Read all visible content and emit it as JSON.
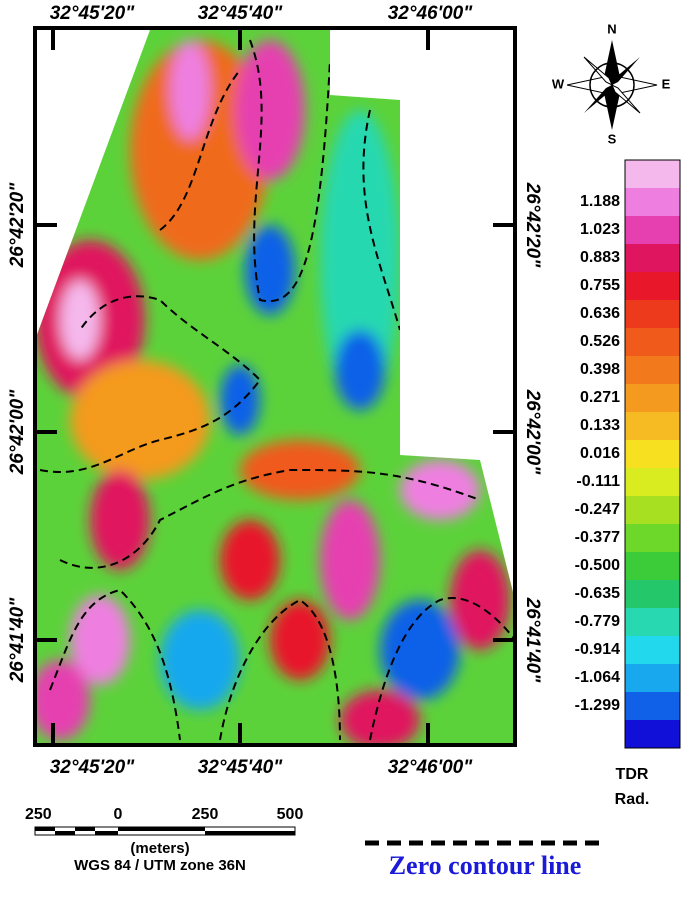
{
  "top_labels": [
    "32°45'20\"",
    "32°45'40\"",
    "32°46'00\""
  ],
  "bottom_labels": [
    "32°45'20\"",
    "32°45'40\"",
    "32°46'00\""
  ],
  "left_labels": [
    "26°42'20\"",
    "26°42'00\"",
    "26°41'40\""
  ],
  "right_labels": [
    "26°42'20\"",
    "26°42'00\"",
    "26°41'40\""
  ],
  "compass": {
    "n": "N",
    "s": "S",
    "e": "E",
    "w": "W"
  },
  "legend": {
    "title": "TDR",
    "unit": "Rad.",
    "labels": [
      "1.188",
      "1.023",
      "0.883",
      "0.755",
      "0.636",
      "0.526",
      "0.398",
      "0.271",
      "0.133",
      "0.016",
      "-0.111",
      "-0.247",
      "-0.377",
      "-0.500",
      "-0.635",
      "-0.779",
      "-0.914",
      "-1.064",
      "-1.299"
    ],
    "colors": [
      "#f5b8ec",
      "#ee7fe0",
      "#e63fb0",
      "#e0155f",
      "#e8182a",
      "#ee3a1c",
      "#f05a1a",
      "#f27a1c",
      "#f49a1e",
      "#f6bb22",
      "#f6e020",
      "#d8ec20",
      "#a6e020",
      "#6dd82a",
      "#3ccc3a",
      "#24c86a",
      "#28d8b0",
      "#22d8ec",
      "#18a8ee",
      "#1060e8",
      "#1010d8"
    ]
  },
  "scale_bar": {
    "labels": [
      "250",
      "0",
      "250",
      "500"
    ],
    "unit": "(meters)",
    "projection": "WGS 84 / UTM zone 36N"
  },
  "contour_legend": "Zero contour line"
}
